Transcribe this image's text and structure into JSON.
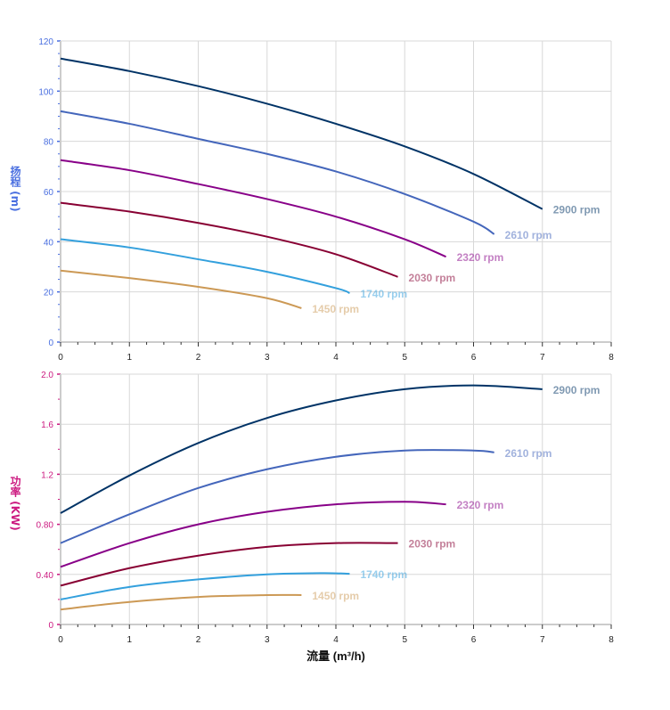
{
  "chart_data": [
    {
      "type": "line",
      "ylabel": "扬程 (m)",
      "ylabel_color": "#4a6fe0",
      "xlim": [
        0,
        8
      ],
      "ylim": [
        0,
        120
      ],
      "xticks": [
        "0",
        "1",
        "2",
        "3",
        "4",
        "5",
        "6",
        "7",
        "8"
      ],
      "yticks": [
        "0",
        "20",
        "40",
        "60",
        "80",
        "100",
        "120"
      ],
      "grid": true,
      "series": [
        {
          "name": "2900 rpm",
          "color": "#003366",
          "x": [
            0,
            1,
            2,
            3,
            4,
            5,
            6,
            7
          ],
          "y": [
            113,
            108,
            102,
            95,
            87,
            78,
            67,
            53
          ]
        },
        {
          "name": "2610 rpm",
          "color": "#4466bb",
          "x": [
            0,
            1,
            2,
            3,
            4,
            5,
            6,
            6.3
          ],
          "y": [
            92,
            87,
            81,
            75,
            68,
            59,
            48,
            43
          ]
        },
        {
          "name": "2320 rpm",
          "color": "#880088",
          "x": [
            0,
            1,
            2,
            3,
            4,
            5,
            5.6
          ],
          "y": [
            72.5,
            68.5,
            63,
            57,
            50,
            41,
            34
          ]
        },
        {
          "name": "2030 rpm",
          "color": "#880033",
          "x": [
            0,
            1,
            2,
            3,
            4,
            4.9
          ],
          "y": [
            55.5,
            52,
            47.5,
            42,
            35,
            26
          ]
        },
        {
          "name": "1740 rpm",
          "color": "#33a0dd",
          "x": [
            0,
            1,
            2,
            3,
            4,
            4.2
          ],
          "y": [
            41,
            37.7,
            33,
            28,
            21.5,
            19.5
          ]
        },
        {
          "name": "1450 rpm",
          "color": "#cc9955",
          "x": [
            0,
            1,
            2,
            3,
            3.5
          ],
          "y": [
            28.5,
            25.5,
            22,
            17.5,
            13.5
          ]
        }
      ]
    },
    {
      "type": "line",
      "xlabel": "流量 (m³/h)",
      "ylabel": "功率 (KW)",
      "ylabel_color": "#cc1a80",
      "xlim": [
        0,
        8
      ],
      "ylim": [
        0,
        2.0
      ],
      "xticks": [
        "0",
        "1",
        "2",
        "3",
        "4",
        "5",
        "6",
        "7",
        "8"
      ],
      "yticks": [
        "0",
        "0.40",
        "0.80",
        "1.2",
        "1.6",
        "2.0"
      ],
      "grid": true,
      "series": [
        {
          "name": "2900 rpm",
          "color": "#003366",
          "x": [
            0,
            1,
            2,
            3,
            4,
            5,
            6,
            7
          ],
          "y": [
            0.89,
            1.19,
            1.45,
            1.65,
            1.79,
            1.88,
            1.91,
            1.88
          ]
        },
        {
          "name": "2610 rpm",
          "color": "#4466bb",
          "x": [
            0,
            1,
            2,
            3,
            4,
            5,
            6,
            6.3
          ],
          "y": [
            0.65,
            0.88,
            1.09,
            1.24,
            1.34,
            1.39,
            1.39,
            1.375
          ]
        },
        {
          "name": "2320 rpm",
          "color": "#880088",
          "x": [
            0,
            1,
            2,
            3,
            4,
            5,
            5.6
          ],
          "y": [
            0.46,
            0.65,
            0.8,
            0.9,
            0.96,
            0.98,
            0.96
          ]
        },
        {
          "name": "2030 rpm",
          "color": "#880033",
          "x": [
            0,
            1,
            2,
            3,
            4,
            4.9
          ],
          "y": [
            0.31,
            0.45,
            0.55,
            0.62,
            0.65,
            0.65
          ]
        },
        {
          "name": "1740 rpm",
          "color": "#33a0dd",
          "x": [
            0,
            1,
            2,
            3,
            3.8,
            4.2
          ],
          "y": [
            0.2,
            0.3,
            0.36,
            0.4,
            0.41,
            0.405
          ]
        },
        {
          "name": "1450 rpm",
          "color": "#cc9955",
          "x": [
            0,
            1,
            2,
            3,
            3.5
          ],
          "y": [
            0.12,
            0.18,
            0.22,
            0.235,
            0.235
          ]
        }
      ]
    }
  ]
}
